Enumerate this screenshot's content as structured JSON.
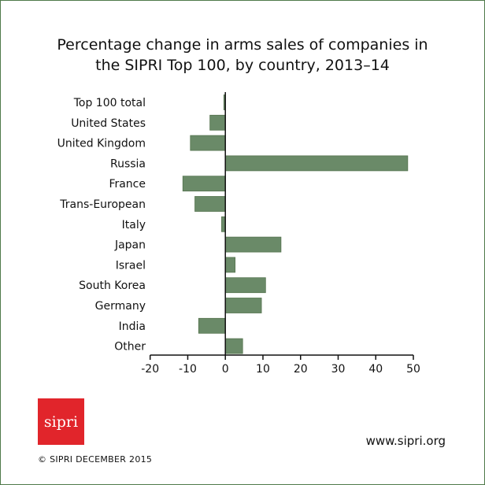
{
  "chart_data": {
    "type": "bar",
    "orientation": "horizontal",
    "title": "Percentage change in arms sales of companies in the SIPRI Top 100, by country, 2013–14",
    "title_lines": [
      "Percentage change in arms sales of companies in",
      "the SIPRI Top 100, by country, 2013–14"
    ],
    "categories": [
      "Top 100 total",
      "United States",
      "United Kingdom",
      "Russia",
      "France",
      "Trans-European",
      "Italy",
      "Japan",
      "Israel",
      "South Korea",
      "Germany",
      "India",
      "Other"
    ],
    "values": [
      -0.4,
      -4.1,
      -9.3,
      48.5,
      -11.3,
      -8.1,
      -1.0,
      14.8,
      2.6,
      10.7,
      9.6,
      -7.1,
      4.6
    ],
    "xlim": [
      -20,
      50
    ],
    "xticks": [
      -20,
      -10,
      0,
      10,
      20,
      30,
      40,
      50
    ],
    "xlabel": "",
    "ylabel": "",
    "grid": false,
    "bar_color": "#6a8a68"
  },
  "footer": {
    "logo_text": "sipri",
    "url": "www.sipri.org",
    "copyright": "© SIPRI DECEMBER 2015"
  },
  "colors": {
    "border": "#4f7a4a",
    "logo": "#e1252b"
  }
}
